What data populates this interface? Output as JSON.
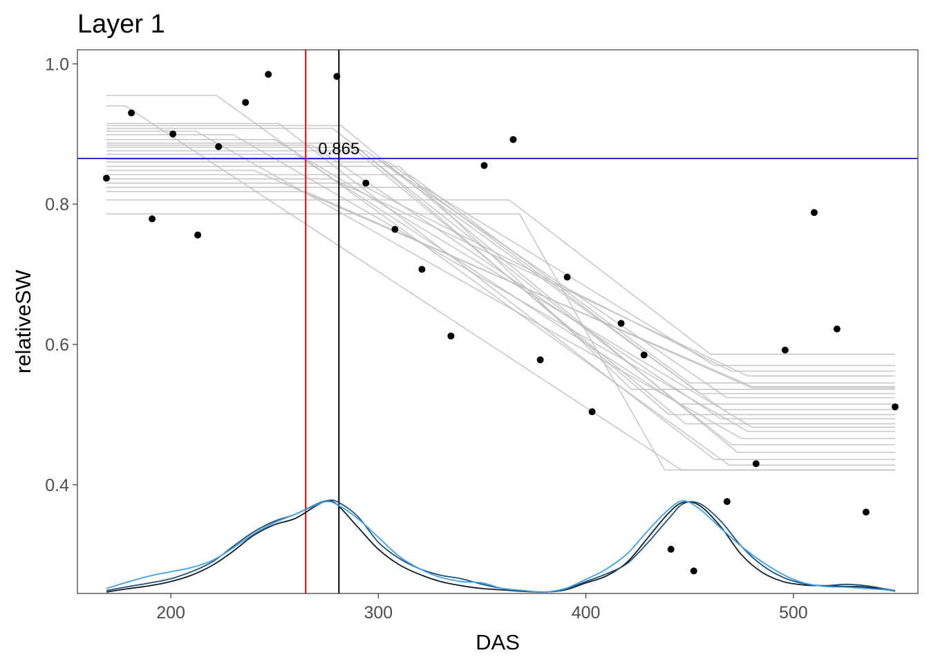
{
  "chart_data": {
    "type": "scatter",
    "title": "Layer 1",
    "xlabel": "DAS",
    "ylabel": "relativeSW",
    "xlim": [
      155,
      560
    ],
    "ylim": [
      0.245,
      1.02
    ],
    "x_ticks": [
      {
        "value": 200,
        "label": "200"
      },
      {
        "value": 300,
        "label": "300"
      },
      {
        "value": 400,
        "label": "400"
      },
      {
        "value": 500,
        "label": "500"
      }
    ],
    "y_ticks": [
      {
        "value": 0.4,
        "label": "0.4"
      },
      {
        "value": 0.6,
        "label": "0.6"
      },
      {
        "value": 0.8,
        "label": "0.8"
      },
      {
        "value": 1.0,
        "label": "1.0"
      }
    ],
    "grid": false,
    "legend": "none",
    "colors": {
      "points": "#000000",
      "fits": "#bebebe",
      "hline": "#0000cd",
      "vline_red": "#e00000",
      "vline_black": "#000000",
      "density": [
        "#0d1b2a",
        "#1f4e79",
        "#3fa0e8"
      ]
    },
    "points": [
      {
        "x": 169,
        "y": 0.837
      },
      {
        "x": 181,
        "y": 0.93
      },
      {
        "x": 191,
        "y": 0.779
      },
      {
        "x": 201,
        "y": 0.9
      },
      {
        "x": 213,
        "y": 0.756
      },
      {
        "x": 223,
        "y": 0.882
      },
      {
        "x": 236,
        "y": 0.945
      },
      {
        "x": 247,
        "y": 0.985
      },
      {
        "x": 280,
        "y": 0.982
      },
      {
        "x": 294,
        "y": 0.83
      },
      {
        "x": 308,
        "y": 0.764
      },
      {
        "x": 321,
        "y": 0.707
      },
      {
        "x": 335,
        "y": 0.612
      },
      {
        "x": 351,
        "y": 0.855
      },
      {
        "x": 365,
        "y": 0.892
      },
      {
        "x": 378,
        "y": 0.578
      },
      {
        "x": 391,
        "y": 0.696
      },
      {
        "x": 403,
        "y": 0.504
      },
      {
        "x": 417,
        "y": 0.63
      },
      {
        "x": 428,
        "y": 0.585
      },
      {
        "x": 441,
        "y": 0.308
      },
      {
        "x": 452,
        "y": 0.277
      },
      {
        "x": 468,
        "y": 0.376
      },
      {
        "x": 482,
        "y": 0.43
      },
      {
        "x": 496,
        "y": 0.592
      },
      {
        "x": 510,
        "y": 0.788
      },
      {
        "x": 521,
        "y": 0.622
      },
      {
        "x": 535,
        "y": 0.361
      },
      {
        "x": 549,
        "y": 0.511
      }
    ],
    "hline": {
      "y": 0.865,
      "label": "0.865"
    },
    "vlines": [
      {
        "x": 265,
        "color": "red"
      },
      {
        "x": 281,
        "color": "black"
      }
    ],
    "fits": [
      {
        "plateau": 0.955,
        "x1": 222,
        "x2": 469,
        "floor": 0.428
      },
      {
        "plateau": 0.94,
        "x1": 178,
        "x2": 446,
        "floor": 0.421
      },
      {
        "plateau": 0.915,
        "x1": 252,
        "x2": 462,
        "floor": 0.436
      },
      {
        "plateau": 0.912,
        "x1": 282,
        "x2": 473,
        "floor": 0.446
      },
      {
        "plateau": 0.908,
        "x1": 278,
        "x2": 470,
        "floor": 0.457
      },
      {
        "plateau": 0.904,
        "x1": 212,
        "x2": 475,
        "floor": 0.466
      },
      {
        "plateau": 0.899,
        "x1": 230,
        "x2": 478,
        "floor": 0.476
      },
      {
        "plateau": 0.892,
        "x1": 250,
        "x2": 480,
        "floor": 0.482
      },
      {
        "plateau": 0.887,
        "x1": 285,
        "x2": 448,
        "floor": 0.487
      },
      {
        "plateau": 0.884,
        "x1": 268,
        "x2": 465,
        "floor": 0.494
      },
      {
        "plateau": 0.881,
        "x1": 290,
        "x2": 440,
        "floor": 0.5
      },
      {
        "plateau": 0.876,
        "x1": 294,
        "x2": 466,
        "floor": 0.507
      },
      {
        "plateau": 0.871,
        "x1": 260,
        "x2": 445,
        "floor": 0.515
      },
      {
        "plateau": 0.864,
        "x1": 300,
        "x2": 468,
        "floor": 0.524
      },
      {
        "plateau": 0.86,
        "x1": 305,
        "x2": 455,
        "floor": 0.53
      },
      {
        "plateau": 0.854,
        "x1": 310,
        "x2": 422,
        "floor": 0.536
      },
      {
        "plateau": 0.848,
        "x1": 240,
        "x2": 480,
        "floor": 0.54
      },
      {
        "plateau": 0.842,
        "x1": 315,
        "x2": 450,
        "floor": 0.545
      },
      {
        "plateau": 0.836,
        "x1": 278,
        "x2": 478,
        "floor": 0.555
      },
      {
        "plateau": 0.83,
        "x1": 290,
        "x2": 470,
        "floor": 0.562
      },
      {
        "plateau": 0.824,
        "x1": 322,
        "x2": 462,
        "floor": 0.57
      },
      {
        "plateau": 0.818,
        "x1": 265,
        "x2": 480,
        "floor": 0.538
      },
      {
        "plateau": 0.806,
        "x1": 363,
        "x2": 460,
        "floor": 0.586
      },
      {
        "plateau": 0.786,
        "x1": 368,
        "x2": 438,
        "floor": 0.421
      }
    ],
    "density_curves": [
      {
        "x": [
          169,
          180,
          190,
          200,
          210,
          220,
          230,
          240,
          250,
          260,
          270,
          275,
          280,
          290,
          300,
          310,
          320,
          330,
          340,
          350,
          360,
          370,
          380,
          390,
          400,
          410,
          420,
          430,
          440,
          447,
          455,
          465,
          475,
          485,
          495,
          505,
          515,
          525,
          535,
          545,
          549
        ],
        "y": [
          0.247,
          0.252,
          0.256,
          0.262,
          0.271,
          0.285,
          0.305,
          0.328,
          0.343,
          0.352,
          0.37,
          0.376,
          0.372,
          0.34,
          0.308,
          0.286,
          0.272,
          0.262,
          0.256,
          0.252,
          0.25,
          0.248,
          0.247,
          0.25,
          0.26,
          0.27,
          0.29,
          0.325,
          0.36,
          0.375,
          0.37,
          0.34,
          0.3,
          0.275,
          0.262,
          0.257,
          0.256,
          0.255,
          0.254,
          0.25,
          0.248
        ]
      },
      {
        "x": [
          169,
          180,
          190,
          200,
          210,
          220,
          230,
          240,
          250,
          260,
          270,
          275,
          280,
          290,
          300,
          310,
          320,
          330,
          340,
          350,
          360,
          370,
          380,
          390,
          400,
          410,
          420,
          430,
          440,
          447,
          455,
          465,
          475,
          485,
          495,
          505,
          515,
          525,
          535,
          545,
          549
        ],
        "y": [
          0.249,
          0.255,
          0.26,
          0.266,
          0.276,
          0.29,
          0.312,
          0.333,
          0.348,
          0.358,
          0.372,
          0.377,
          0.376,
          0.355,
          0.318,
          0.295,
          0.28,
          0.271,
          0.266,
          0.258,
          0.252,
          0.249,
          0.247,
          0.251,
          0.262,
          0.273,
          0.288,
          0.318,
          0.352,
          0.373,
          0.373,
          0.348,
          0.312,
          0.285,
          0.268,
          0.259,
          0.256,
          0.258,
          0.256,
          0.251,
          0.249
        ]
      },
      {
        "x": [
          169,
          180,
          190,
          200,
          210,
          220,
          230,
          240,
          250,
          260,
          270,
          275,
          280,
          290,
          300,
          310,
          320,
          330,
          340,
          350,
          360,
          370,
          380,
          390,
          400,
          410,
          420,
          430,
          440,
          447,
          455,
          465,
          475,
          485,
          495,
          505,
          515,
          525,
          535,
          545,
          549
        ],
        "y": [
          0.252,
          0.262,
          0.27,
          0.276,
          0.282,
          0.292,
          0.31,
          0.33,
          0.346,
          0.358,
          0.371,
          0.376,
          0.372,
          0.352,
          0.325,
          0.298,
          0.28,
          0.268,
          0.262,
          0.26,
          0.252,
          0.249,
          0.247,
          0.252,
          0.265,
          0.28,
          0.302,
          0.335,
          0.365,
          0.377,
          0.365,
          0.338,
          0.312,
          0.29,
          0.272,
          0.26,
          0.255,
          0.254,
          0.252,
          0.25,
          0.248
        ]
      }
    ]
  }
}
